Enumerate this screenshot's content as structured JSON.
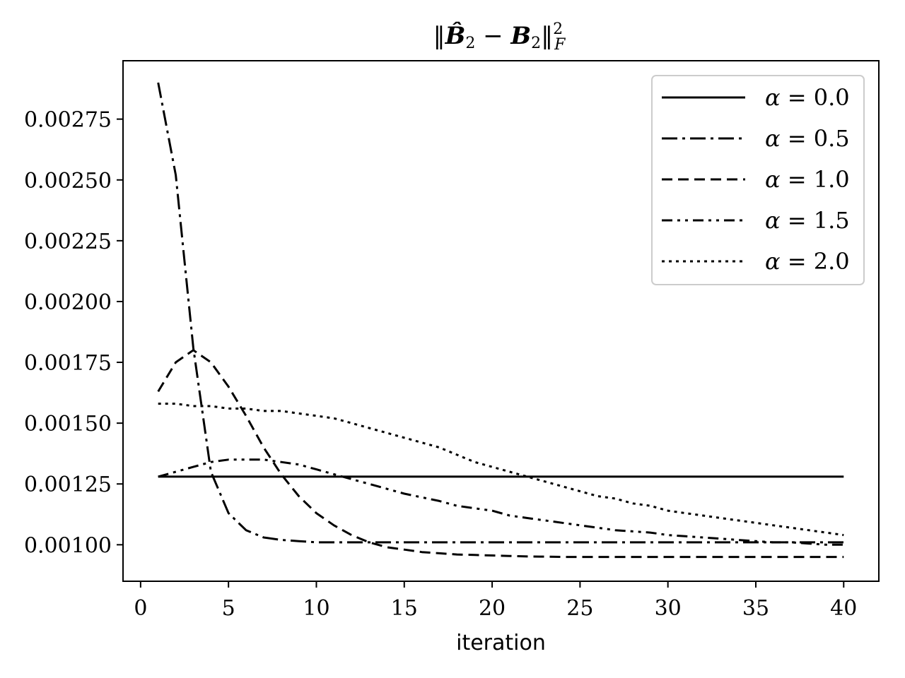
{
  "chart_data": {
    "type": "line",
    "title": "‖B̂₂ − B₂‖²_F",
    "xlabel": "iteration",
    "ylabel": "",
    "xlim": [
      -1,
      42
    ],
    "ylim": [
      0.00085,
      0.00299
    ],
    "xticks": [
      0,
      5,
      10,
      15,
      20,
      25,
      30,
      35,
      40
    ],
    "yticks": [
      0.001,
      0.00125,
      0.0015,
      0.00175,
      0.002,
      0.00225,
      0.0025,
      0.00275
    ],
    "ytick_labels": [
      "0.00100",
      "0.00125",
      "0.00150",
      "0.00175",
      "0.00200",
      "0.00225",
      "0.00250",
      "0.00275"
    ],
    "grid": false,
    "legend_position": "top-right",
    "x": [
      1,
      2,
      3,
      4,
      5,
      6,
      7,
      8,
      9,
      10,
      11,
      12,
      13,
      14,
      15,
      16,
      17,
      18,
      19,
      20,
      21,
      22,
      23,
      24,
      25,
      26,
      27,
      28,
      29,
      30,
      31,
      32,
      33,
      34,
      35,
      36,
      37,
      38,
      39,
      40
    ],
    "series": [
      {
        "name": "α = 0.0",
        "dash": "solid",
        "color": "#000000",
        "values": [
          0.00128,
          0.00128,
          0.00128,
          0.00128,
          0.00128,
          0.00128,
          0.00128,
          0.00128,
          0.00128,
          0.00128,
          0.00128,
          0.00128,
          0.00128,
          0.00128,
          0.00128,
          0.00128,
          0.00128,
          0.00128,
          0.00128,
          0.00128,
          0.00128,
          0.00128,
          0.00128,
          0.00128,
          0.00128,
          0.00128,
          0.00128,
          0.00128,
          0.00128,
          0.00128,
          0.00128,
          0.00128,
          0.00128,
          0.00128,
          0.00128,
          0.00128,
          0.00128,
          0.00128,
          0.00128,
          0.00128
        ]
      },
      {
        "name": "α = 0.5",
        "dash": "dashdot",
        "color": "#000000",
        "values": [
          0.0029,
          0.00252,
          0.00181,
          0.0013,
          0.00113,
          0.00106,
          0.00103,
          0.00102,
          0.001015,
          0.00101,
          0.00101,
          0.00101,
          0.00101,
          0.00101,
          0.00101,
          0.00101,
          0.00101,
          0.00101,
          0.00101,
          0.00101,
          0.00101,
          0.00101,
          0.00101,
          0.00101,
          0.00101,
          0.00101,
          0.00101,
          0.00101,
          0.00101,
          0.00101,
          0.00101,
          0.00101,
          0.00101,
          0.00101,
          0.00101,
          0.00101,
          0.00101,
          0.00101,
          0.00101,
          0.00101
        ]
      },
      {
        "name": "α = 1.0",
        "dash": "dashed",
        "color": "#000000",
        "values": [
          0.00163,
          0.00175,
          0.0018,
          0.00175,
          0.00165,
          0.00153,
          0.0014,
          0.00129,
          0.0012,
          0.00113,
          0.00108,
          0.00104,
          0.00101,
          0.00099,
          0.00098,
          0.00097,
          0.000965,
          0.00096,
          0.000958,
          0.000956,
          0.000954,
          0.000952,
          0.000951,
          0.00095,
          0.00095,
          0.00095,
          0.00095,
          0.00095,
          0.00095,
          0.00095,
          0.00095,
          0.00095,
          0.00095,
          0.00095,
          0.00095,
          0.00095,
          0.00095,
          0.00095,
          0.00095,
          0.00095
        ]
      },
      {
        "name": "α = 1.5",
        "dash": "dashdotdot",
        "color": "#000000",
        "values": [
          0.00128,
          0.0013,
          0.00132,
          0.00134,
          0.00135,
          0.00135,
          0.00135,
          0.00134,
          0.00133,
          0.00131,
          0.00129,
          0.00127,
          0.00125,
          0.00123,
          0.00121,
          0.001195,
          0.00118,
          0.00116,
          0.00115,
          0.00114,
          0.00112,
          0.00111,
          0.0011,
          0.00109,
          0.00108,
          0.00107,
          0.00106,
          0.001055,
          0.00105,
          0.00104,
          0.001035,
          0.00103,
          0.001025,
          0.00102,
          0.001015,
          0.00101,
          0.00101,
          0.001005,
          0.001,
          0.001
        ]
      },
      {
        "name": "α = 2.0",
        "dash": "dotted",
        "color": "#000000",
        "values": [
          0.00158,
          0.00158,
          0.00157,
          0.00157,
          0.00156,
          0.00156,
          0.00155,
          0.00155,
          0.00154,
          0.00153,
          0.00152,
          0.0015,
          0.00148,
          0.00146,
          0.00144,
          0.00142,
          0.0014,
          0.00137,
          0.00134,
          0.00132,
          0.0013,
          0.00128,
          0.00126,
          0.00124,
          0.00122,
          0.0012,
          0.00119,
          0.00117,
          0.00116,
          0.00114,
          0.00113,
          0.00112,
          0.00111,
          0.0011,
          0.00109,
          0.00108,
          0.00107,
          0.00106,
          0.00105,
          0.00104
        ]
      }
    ]
  }
}
